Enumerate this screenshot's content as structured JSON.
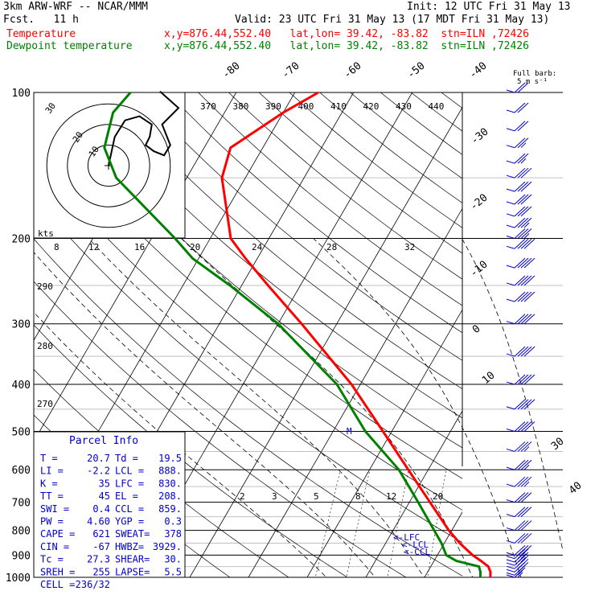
{
  "header": {
    "model": "3km ARW-WRF -- NCAR/MMM",
    "init": "Init: 12 UTC Fri 31 May 13",
    "fcst": "Fcst.   11 h",
    "valid": "Valid: 23 UTC Fri 31 May 13 (17 MDT Fri 31 May 13)",
    "temp_label": "Temperature",
    "temp_loc": "x,y=876.44,552.40   lat,lon= 39.42, -83.82  stn=ILN ,72426",
    "dew_label": "Dewpoint temperature",
    "dew_loc": "x,y=876.44,552.40   lat,lon= 39.42, -83.82  stn=ILN ,72426",
    "full_barb": "Full barb:",
    "full_barb_unit": "5 m s⁻¹"
  },
  "colors": {
    "temperature": "#ff0000",
    "dewpoint": "#008000",
    "wind_barbs": "#0000cd",
    "parcel_info": "#0000cd",
    "axes": "#000000"
  },
  "chart_data": {
    "type": "skew-t",
    "pressure_levels": [
      100,
      200,
      300,
      400,
      500,
      600,
      700,
      800,
      900,
      1000
    ],
    "isotherm_labels": [
      -80,
      -70,
      -60,
      -50,
      -40,
      -30,
      -20,
      -10,
      0,
      10,
      30,
      40
    ],
    "theta_labels_top": [
      370,
      380,
      390,
      400,
      410,
      420,
      430,
      440
    ],
    "theta_labels_left": [
      290,
      280,
      270
    ],
    "mixing_ratio_labels_mid": [
      "8",
      "12",
      "16",
      "20",
      "24",
      "28",
      "32"
    ],
    "mixing_ratio_labels_low": [
      "2",
      "3",
      "5",
      "8",
      "12",
      "20"
    ],
    "hodograph": {
      "unit_label": "kts",
      "ring_labels": [
        "10",
        "20",
        "30"
      ],
      "trace_knots": [
        [
          0,
          0
        ],
        [
          3,
          14
        ],
        [
          8,
          22
        ],
        [
          15,
          24
        ],
        [
          21,
          20
        ],
        [
          20,
          14
        ],
        [
          18,
          10
        ],
        [
          22,
          7
        ],
        [
          27,
          5
        ],
        [
          30,
          10
        ],
        [
          26,
          20
        ],
        [
          34,
          28
        ],
        [
          25,
          36
        ]
      ]
    },
    "series": [
      {
        "name": "Temperature",
        "pressure": [
          1000,
          975,
          950,
          925,
          900,
          850,
          800,
          700,
          600,
          500,
          400,
          300,
          250,
          220,
          200,
          150,
          130,
          110,
          100
        ],
        "temp": [
          21.2,
          20.7,
          19.8,
          18.0,
          16.0,
          12.6,
          9.5,
          3.5,
          -3.4,
          -11.5,
          -21.5,
          -36.0,
          -45.5,
          -52.0,
          -56.5,
          -64.0,
          -65.5,
          -60.0,
          -56.0
        ]
      },
      {
        "name": "Dewpoint temperature",
        "pressure": [
          1000,
          975,
          950,
          925,
          900,
          850,
          800,
          700,
          600,
          500,
          400,
          300,
          250,
          220,
          200,
          150,
          130,
          110,
          100
        ],
        "temp": [
          19.5,
          19.0,
          18.2,
          13.8,
          11.5,
          9.5,
          7.0,
          1.5,
          -5.0,
          -14.5,
          -24.0,
          -40.0,
          -52.0,
          -61.0,
          -66.0,
          -82.0,
          -87.0,
          -89.0,
          -88.0
        ]
      }
    ],
    "level_markers": [
      "LFC",
      "LCL",
      "CCL"
    ],
    "wind_barbs": {
      "pressure": [
        1000,
        990,
        975,
        960,
        945,
        930,
        915,
        900,
        850,
        800,
        750,
        700,
        650,
        600,
        550,
        500,
        450,
        400,
        350,
        300,
        270,
        250,
        230,
        210,
        200,
        190,
        180,
        170,
        160,
        150,
        140,
        130,
        120,
        110,
        100
      ],
      "speed_ms": [
        8,
        9,
        10,
        11,
        12,
        13,
        14,
        15,
        15,
        16,
        17,
        17,
        18,
        18,
        19,
        20,
        20,
        21,
        21,
        22,
        22,
        21,
        20,
        20,
        19,
        18,
        17,
        16,
        16,
        15,
        14,
        13,
        12,
        10,
        10
      ]
    }
  },
  "parcel_info": {
    "title": "Parcel Info",
    "rows": [
      [
        "T  =",
        "20.7",
        "Td  =",
        "19.5"
      ],
      [
        "LI =",
        "-2.2",
        "LCL =",
        "888."
      ],
      [
        "K  =",
        "35",
        "LFC =",
        "830."
      ],
      [
        "TT =",
        "45",
        "EL  =",
        "208."
      ],
      [
        "SWI =",
        "0.4",
        "CCL =",
        "859."
      ],
      [
        "PW =",
        "4.60",
        "YGP =",
        "0.3"
      ],
      [
        "CAPE =",
        "621",
        "SWEAT=",
        "378"
      ],
      [
        "CIN =",
        "-67",
        "HWBZ=",
        "3929."
      ],
      [
        "Tc =",
        "27.3",
        "SHEAR=",
        "30."
      ],
      [
        "SREH =",
        "255",
        "LAPSE=",
        "5.5"
      ],
      [
        "CELL =",
        "236/32",
        "",
        ""
      ]
    ]
  }
}
